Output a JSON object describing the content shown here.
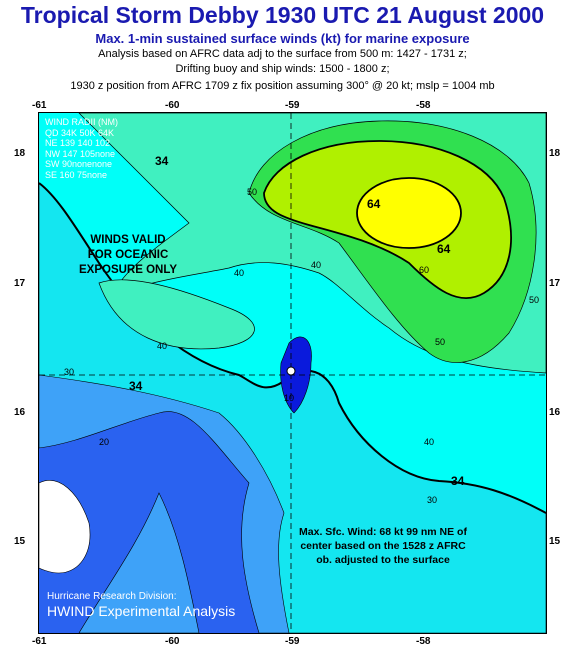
{
  "header": {
    "title": "Tropical Storm Debby 1930 UTC 21 August 2000",
    "subtitle": "Max. 1-min sustained surface winds (kt) for marine exposure",
    "line2": "Analysis based on AFRC data adj to the surface from 500 m: 1427 - 1731 z;",
    "line3": "Drifting buoy and ship winds: 1500 - 1800 z;",
    "line4": "1930 z position from AFRC 1709 z  fix position assuming 300° @ 20 kt; mslp = 1004 mb"
  },
  "axes": {
    "lon_top": [
      "-61",
      "-60",
      "-59",
      "-58"
    ],
    "lon_bottom": [
      "-61",
      "-60",
      "-59",
      "-58"
    ],
    "lat_left": [
      "18",
      "17",
      "16",
      "15"
    ],
    "lat_right": [
      "18",
      "17",
      "16",
      "15"
    ]
  },
  "wind_radii": {
    "header": "WIND RADII (NM)",
    "cols": "QD  34K  50K  64K",
    "rows": [
      "NE  139 140  102",
      "NW 147 105none",
      "SW   90nonenone",
      "SE  160   75none"
    ]
  },
  "notes": {
    "valid": [
      "WINDS VALID",
      "FOR OCEANIC",
      "EXPOSURE ONLY"
    ],
    "max_wind": [
      "Max. Sfc. Wind: 68 kt 99 nm NE of",
      "center based on the 1528 z AFRC",
      "ob. adjusted to the surface"
    ]
  },
  "contour_labels": {
    "c34a": "34",
    "c34b": "34",
    "c34c": "34",
    "c64a": "64",
    "c64b": "64",
    "c50a": "50",
    "c50b": "50",
    "c50c": "50",
    "c60": "60",
    "c40a": "40",
    "c40b": "40",
    "c40c": "40",
    "c40d": "40",
    "c30a": "30",
    "c30b": "30",
    "c20a": "20",
    "c10": "10"
  },
  "credit": {
    "line1": "Hurricane Research Division:",
    "line2": "HWIND Experimental Analysis"
  },
  "colors": {
    "lt10": "#0a1adc",
    "c10_20": "#2a62f0",
    "c20_30": "#3ea2f8",
    "c30_34": "#14e6f0",
    "c34_40": "#00fff8",
    "c40_50": "#40f0c0",
    "c50_60": "#30e050",
    "c60_64": "#b0f000",
    "c64": "#ffff00"
  }
}
